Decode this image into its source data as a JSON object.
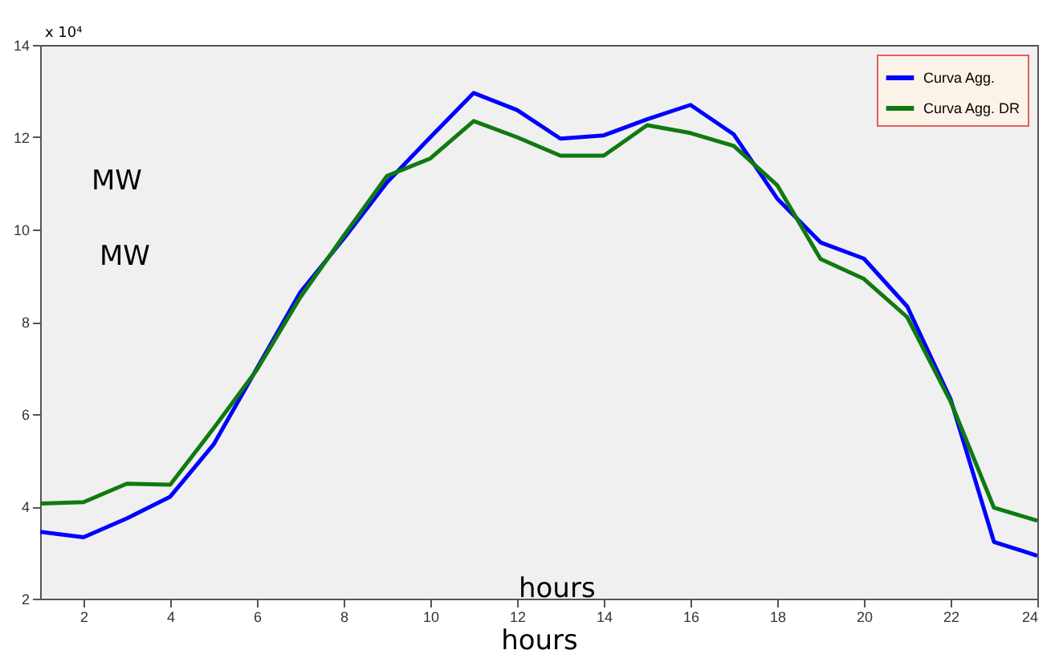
{
  "chart_data": {
    "type": "line",
    "x": [
      1,
      2,
      3,
      4,
      5,
      6,
      7,
      8,
      9,
      10,
      11,
      12,
      13,
      14,
      15,
      16,
      17,
      18,
      19,
      20,
      21,
      22,
      23,
      24
    ],
    "series": [
      {
        "name": "Curva Agg.",
        "color": "#0000ff",
        "values": [
          3.45,
          3.33,
          3.74,
          4.21,
          5.34,
          6.99,
          8.64,
          9.8,
          11.02,
          12.0,
          12.96,
          12.59,
          11.97,
          12.04,
          12.39,
          12.7,
          12.06,
          10.67,
          9.72,
          9.37,
          8.33,
          6.32,
          3.23,
          2.93
        ]
      },
      {
        "name": "Curva Agg. DR",
        "color": "#107a10",
        "values": [
          4.06,
          4.09,
          4.49,
          4.47,
          5.69,
          6.96,
          8.53,
          9.86,
          11.16,
          11.54,
          12.35,
          12.0,
          11.6,
          11.6,
          12.26,
          12.09,
          11.81,
          10.96,
          9.36,
          8.93,
          8.1,
          6.27,
          3.97,
          3.69
        ]
      }
    ],
    "xlabel": "hours",
    "annotations": [
      "x 10⁴",
      "MW",
      "MW",
      "hours"
    ],
    "xlim": [
      1,
      24
    ],
    "xticks": [
      2,
      4,
      6,
      8,
      10,
      12,
      14,
      16,
      18,
      20,
      22,
      24
    ],
    "ylim": [
      2,
      14
    ],
    "yticks": [
      2,
      4,
      6,
      8,
      10,
      12,
      14
    ],
    "legend": "top right",
    "grid": false,
    "marker": "none",
    "line_style": "solid"
  }
}
